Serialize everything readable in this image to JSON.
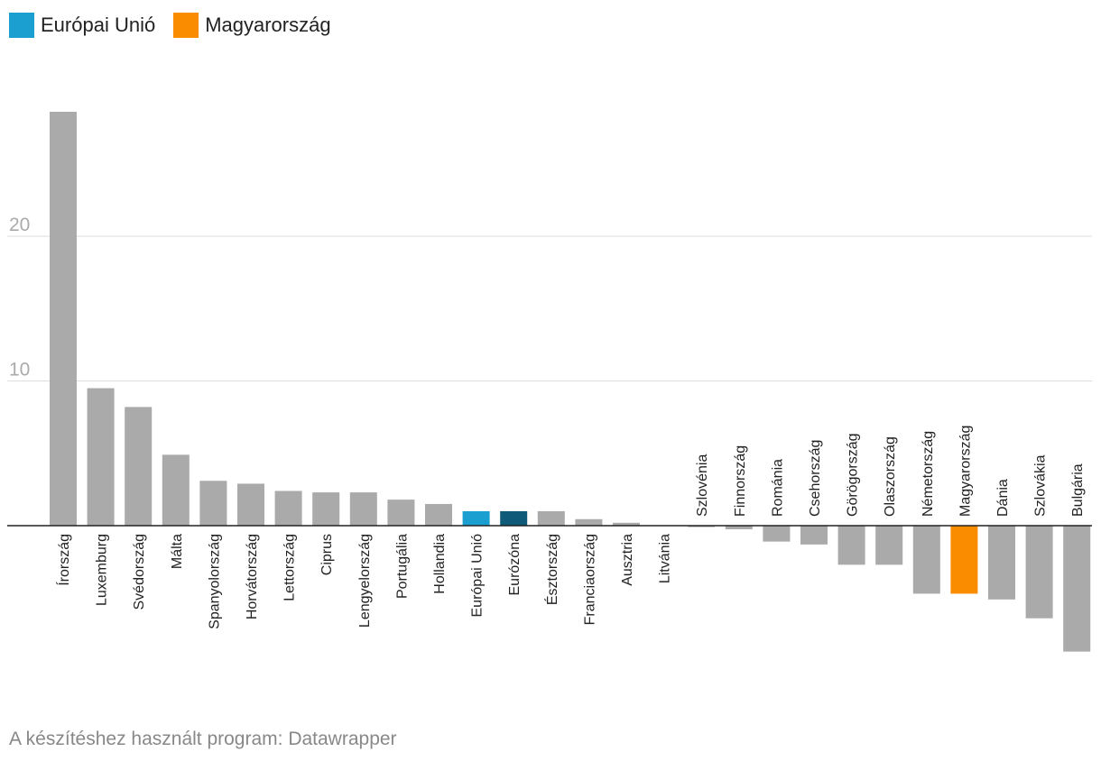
{
  "legend": [
    {
      "label": "Európai Unió",
      "color": "#1a9fd0"
    },
    {
      "label": "Magyarország",
      "color": "#fa8c00"
    }
  ],
  "credit": "A készítéshez használt program: Datawrapper",
  "chart_data": {
    "type": "bar",
    "title": "",
    "xlabel": "",
    "ylabel": "",
    "ylim": [
      -8.7,
      29
    ],
    "yticks": [
      10,
      20
    ],
    "grid": true,
    "default_color": "#aaaaaa",
    "categories": [
      "Írország",
      "Luxemburg",
      "Svédország",
      "Málta",
      "Spanyolország",
      "Horvátország",
      "Lettország",
      "Ciprus",
      "Lengyelország",
      "Portugália",
      "Hollandia",
      "Európai Unió",
      "Eurózóna",
      "Észtország",
      "Franciaország",
      "Ausztria",
      "Litvánia",
      "Szlovénia",
      "Finnország",
      "Románia",
      "Csehország",
      "Görögország",
      "Olaszország",
      "Németország",
      "Magyarország",
      "Dánia",
      "Szlovákia",
      "Bulgária"
    ],
    "values": [
      28.6,
      9.5,
      8.2,
      4.9,
      3.1,
      2.9,
      2.4,
      2.3,
      2.3,
      1.8,
      1.5,
      1.0,
      1.0,
      1.0,
      0.45,
      0.2,
      0.0,
      -0.1,
      -0.25,
      -1.1,
      -1.3,
      -2.7,
      -2.7,
      -4.7,
      -4.7,
      -5.1,
      -6.4,
      -8.7
    ],
    "colors": [
      "#aaaaaa",
      "#aaaaaa",
      "#aaaaaa",
      "#aaaaaa",
      "#aaaaaa",
      "#aaaaaa",
      "#aaaaaa",
      "#aaaaaa",
      "#aaaaaa",
      "#aaaaaa",
      "#aaaaaa",
      "#1a9fd0",
      "#0f5a78",
      "#aaaaaa",
      "#aaaaaa",
      "#aaaaaa",
      "#aaaaaa",
      "#aaaaaa",
      "#aaaaaa",
      "#aaaaaa",
      "#aaaaaa",
      "#aaaaaa",
      "#aaaaaa",
      "#aaaaaa",
      "#fa8c00",
      "#aaaaaa",
      "#aaaaaa",
      "#aaaaaa"
    ]
  }
}
